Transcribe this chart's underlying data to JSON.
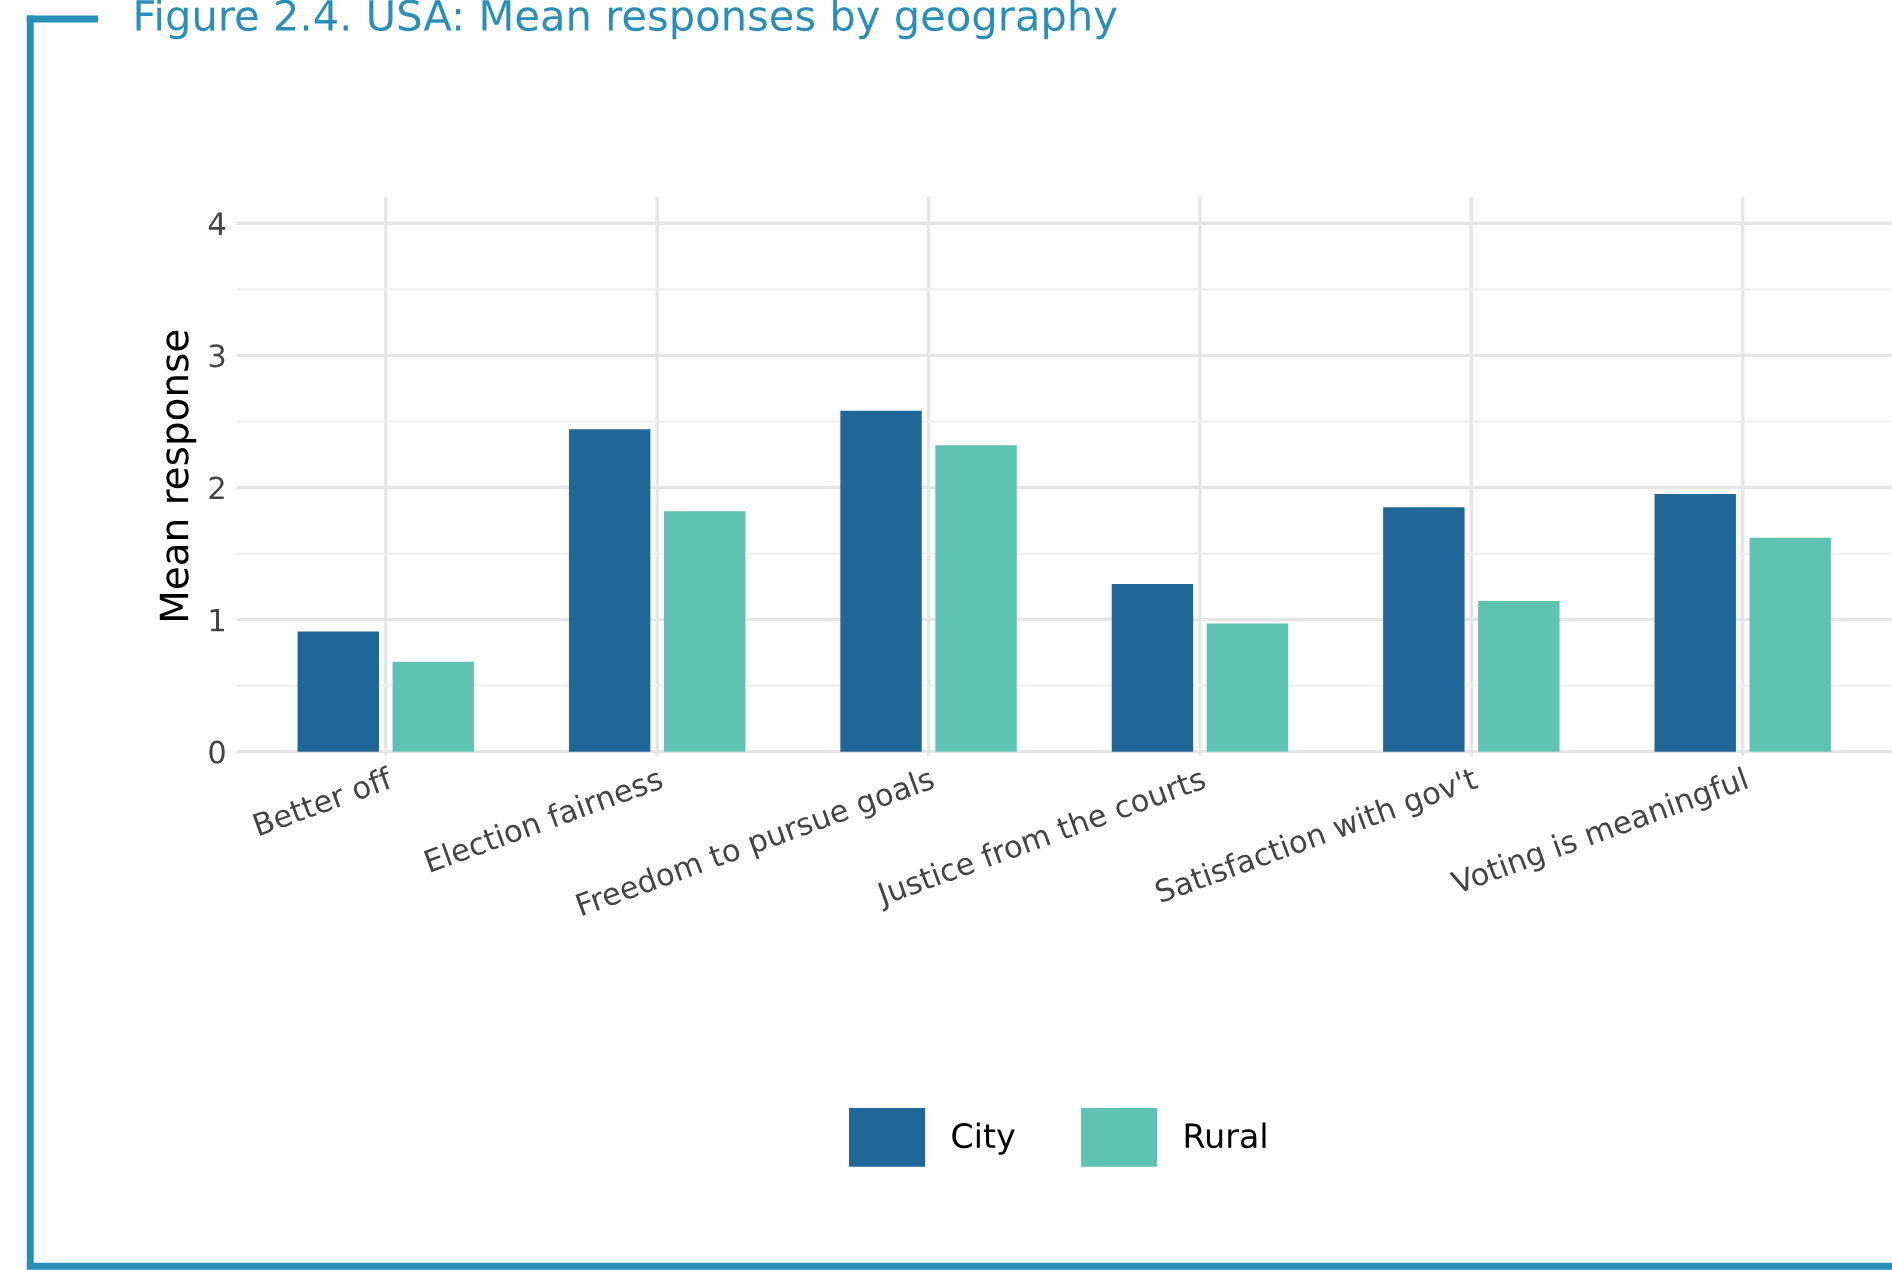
{
  "chart_data": {
    "type": "bar",
    "title": "Figure 2.4. USA: Mean responses by geography",
    "ylabel": "Mean response",
    "categories": [
      "Better off",
      "Election fairness",
      "Freedom to pursue goals",
      "Justice from the courts",
      "Satisfaction with gov't",
      "Voting is meaningful"
    ],
    "series": [
      {
        "name": "City",
        "color": "#1f6699",
        "values": [
          0.91,
          2.44,
          2.58,
          1.27,
          1.85,
          1.95
        ]
      },
      {
        "name": "Rural",
        "color": "#5ec4b1",
        "values": [
          0.68,
          1.82,
          2.32,
          0.97,
          1.14,
          1.62
        ]
      }
    ],
    "ylim": [
      -0.03,
      4.2
    ],
    "yticks": [
      0,
      1,
      2,
      3,
      4
    ],
    "grid": true,
    "legend": "bottom"
  }
}
